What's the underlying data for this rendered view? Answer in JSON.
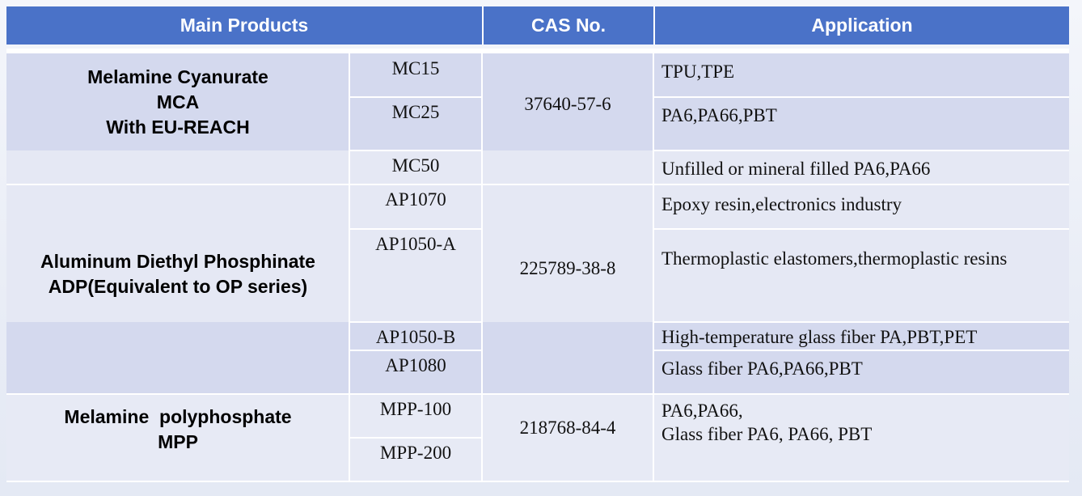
{
  "header": {
    "cells": [
      "Main Products",
      "CAS No.",
      "Application"
    ]
  },
  "groups": [
    {
      "name_lines": [
        "Melamine Cyanurate",
        "MCA",
        "With EU-REACH"
      ],
      "cas": "37640-57-6",
      "rows": [
        {
          "grade": "MC15",
          "application": "TPU,TPE"
        },
        {
          "grade": "MC25",
          "application": "PA6,PA66,PBT"
        },
        {
          "grade": "MC50",
          "application": "Unfilled or mineral filled PA6,PA66"
        }
      ]
    },
    {
      "name_lines": [
        "Aluminum Diethyl Phosphinate",
        "ADP(Equivalent to OP series)"
      ],
      "cas": "225789-38-8",
      "rows": [
        {
          "grade": "AP1070",
          "application": "Epoxy resin,electronics industry"
        },
        {
          "grade": "AP1050-A",
          "application": "Thermoplastic elastomers,thermoplastic resins"
        },
        {
          "grade": "AP1050-B",
          "application": "High-temperature glass fiber PA,PBT,PET"
        },
        {
          "grade": "AP1080",
          "application": "Glass fiber PA6,PA66,PBT"
        }
      ]
    },
    {
      "name_lines": [
        "Melamine  polyphosphate",
        "MPP"
      ],
      "cas": "218768-84-4",
      "application_lines": [
        "PA6,PA66,",
        "Glass fiber PA6, PA66, PBT"
      ],
      "rows": [
        {
          "grade": "MPP-100"
        },
        {
          "grade": "MPP-200"
        }
      ]
    }
  ]
}
